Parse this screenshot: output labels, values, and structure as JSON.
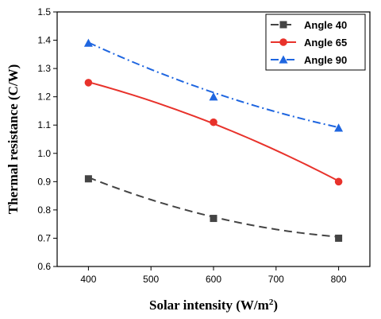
{
  "chart_data": {
    "type": "scatter",
    "xlabel": "Solar intensity (W/m",
    "xlabel_sup": "2",
    "xlabel_close": ")",
    "ylabel": "Thermal resistance (C/W)",
    "xlim": [
      350,
      850
    ],
    "ylim": [
      0.6,
      1.5
    ],
    "x_ticks": [
      400,
      500,
      600,
      700,
      800
    ],
    "x_tick_labels": [
      "400",
      "500",
      "600",
      "700",
      "800"
    ],
    "y_ticks": [
      0.6,
      0.7,
      0.8,
      0.9,
      1.0,
      1.1,
      1.2,
      1.3,
      1.4,
      1.5
    ],
    "y_tick_labels": [
      "0.6",
      "0.7",
      "0.8",
      "0.9",
      "1.0",
      "1.1",
      "1.2",
      "1.3",
      "1.4",
      "1.5"
    ],
    "grid": false,
    "legend_position": "top-right",
    "x": [
      400,
      600,
      800
    ],
    "series": [
      {
        "name": "Angle 40",
        "values": [
          0.91,
          0.77,
          0.7
        ],
        "fit": [
          0.915,
          0.775,
          0.705
        ],
        "color": "#444444",
        "marker": "square",
        "line_style": "dashed"
      },
      {
        "name": "Angle 65",
        "values": [
          1.25,
          1.11,
          0.9
        ],
        "fit": [
          1.252,
          1.105,
          0.902
        ],
        "color": "#e8322b",
        "marker": "circle",
        "line_style": "solid"
      },
      {
        "name": "Angle 90",
        "values": [
          1.39,
          1.2,
          1.09
        ],
        "fit": [
          1.392,
          1.215,
          1.092
        ],
        "color": "#1f66e0",
        "marker": "triangle",
        "line_style": "dash-dot"
      }
    ]
  }
}
